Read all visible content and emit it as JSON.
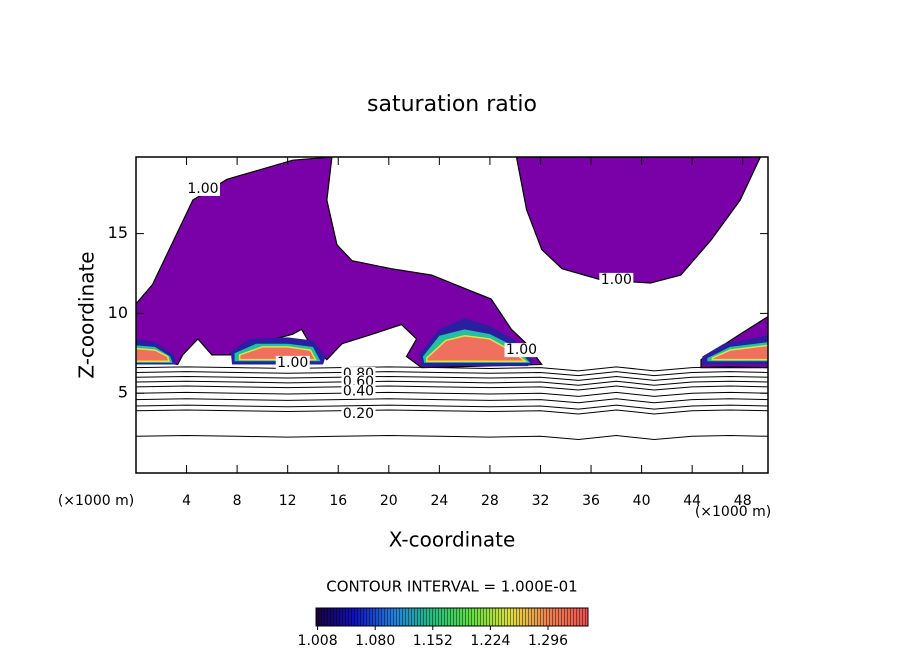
{
  "chart_data": {
    "type": "contour",
    "title": "saturation ratio",
    "xlabel": "X-coordinate",
    "ylabel": "Z-coordinate",
    "y_unit": "(×1000 m)",
    "x_unit": "(×1000 m)",
    "xlim": [
      0,
      50
    ],
    "ylim": [
      0,
      19.8
    ],
    "xticks": [
      4,
      8,
      12,
      16,
      20,
      24,
      28,
      32,
      36,
      40,
      44,
      48
    ],
    "yticks": [
      5,
      10,
      15
    ],
    "regions": [
      {
        "color": "#7a00a8",
        "edge": "#000000",
        "x": [
          0,
          1.3,
          4.5,
          7.2,
          12.4,
          15.5,
          15.1,
          15.9,
          17.1,
          20.2,
          23.4,
          26.2,
          28.1,
          29.7,
          30.9,
          32.1,
          22.6,
          21.4,
          22.2,
          21.0,
          18.7,
          16.3,
          15.1,
          13.9,
          13.1,
          12.4,
          9.6,
          7.6,
          6.0,
          4.9,
          3.7,
          3.3,
          1.7,
          0
        ],
        "y": [
          10.6,
          11.8,
          17.1,
          18.4,
          19.6,
          19.8,
          17.1,
          14.3,
          13.3,
          12.8,
          12.4,
          11.5,
          10.9,
          9.0,
          8.1,
          6.8,
          6.6,
          7.3,
          8.4,
          9.3,
          8.7,
          8.1,
          7.1,
          7.9,
          9.0,
          8.7,
          8.1,
          7.4,
          7.4,
          8.4,
          7.4,
          6.8,
          7.0,
          7.4
        ]
      },
      {
        "color": "#7a00a8",
        "edge": "#000000",
        "x": [
          30.1,
          49.4,
          47.8,
          45.5,
          43.1,
          40.7,
          36.8,
          33.7,
          32.1,
          30.9
        ],
        "y": [
          19.8,
          19.8,
          17.1,
          14.6,
          12.4,
          11.9,
          12.1,
          12.8,
          14.0,
          16.5
        ]
      },
      {
        "color": "#7a00a8",
        "edge": "#000000",
        "x": [
          44.7,
          47.8,
          50,
          50,
          44.7
        ],
        "y": [
          7.1,
          8.7,
          9.8,
          6.6,
          6.6
        ]
      },
      {
        "color": "#2a1fa0",
        "edge": "none",
        "x": [
          0,
          1.5,
          3.0,
          3.2,
          0
        ],
        "y": [
          8.4,
          8.2,
          7.4,
          6.8,
          6.8
        ]
      },
      {
        "color": "#2a1fa0",
        "edge": "none",
        "x": [
          7.5,
          9,
          12,
          14,
          15,
          14.8,
          7.6
        ],
        "y": [
          7.6,
          8.4,
          8.5,
          8.3,
          7.3,
          6.8,
          6.8
        ]
      },
      {
        "color": "#2a1fa0",
        "edge": "none",
        "x": [
          22.4,
          24,
          26,
          28,
          30,
          31.5,
          31,
          22.6
        ],
        "y": [
          7.4,
          9.0,
          9.7,
          9.2,
          8.3,
          7.0,
          6.7,
          6.7
        ]
      },
      {
        "color": "#2a1fa0",
        "edge": "none",
        "x": [
          44.8,
          46.5,
          48.5,
          50,
          50,
          44.8
        ],
        "y": [
          7.3,
          8.1,
          8.4,
          8.6,
          6.8,
          6.8
        ]
      },
      {
        "color": "#20c0a0",
        "edge": "none",
        "x": [
          0,
          1.5,
          2.7,
          2.9,
          0
        ],
        "y": [
          8.0,
          7.9,
          7.3,
          6.9,
          6.9
        ]
      },
      {
        "color": "#20c0a0",
        "edge": "none",
        "x": [
          7.8,
          9.5,
          12,
          14,
          14.6,
          7.8
        ],
        "y": [
          7.5,
          8.1,
          8.1,
          7.9,
          7.0,
          7.0
        ]
      },
      {
        "color": "#20c0a0",
        "edge": "none",
        "x": [
          22.7,
          24,
          26,
          28,
          30,
          31.2,
          22.8
        ],
        "y": [
          7.3,
          8.6,
          9.0,
          8.7,
          7.9,
          6.9,
          6.9
        ]
      },
      {
        "color": "#20c0a0",
        "edge": "none",
        "x": [
          45.2,
          47,
          49,
          50,
          50,
          45.2
        ],
        "y": [
          7.2,
          7.9,
          8.1,
          8.2,
          7.0,
          7.0
        ]
      },
      {
        "color": "#f07060",
        "edge": "#e8e040",
        "x": [
          0,
          1.5,
          2.5,
          2.6,
          0
        ],
        "y": [
          7.8,
          7.7,
          7.3,
          7.0,
          7.0
        ]
      },
      {
        "color": "#f07060",
        "edge": "#e8e040",
        "x": [
          8.2,
          10,
          12,
          13.8,
          14.2,
          8.2
        ],
        "y": [
          7.4,
          7.9,
          7.9,
          7.7,
          7.1,
          7.1
        ]
      },
      {
        "color": "#f07060",
        "edge": "#e8e040",
        "x": [
          23,
          24.5,
          26,
          28,
          29.8,
          30.8,
          23
        ],
        "y": [
          7.2,
          8.3,
          8.6,
          8.4,
          7.6,
          7.0,
          7.0
        ]
      },
      {
        "color": "#f07060",
        "edge": "#e8e040",
        "x": [
          45.6,
          47,
          49,
          50,
          50,
          45.6
        ],
        "y": [
          7.2,
          7.7,
          7.9,
          8.0,
          7.1,
          7.1
        ]
      }
    ],
    "contour_x": [
      0,
      4,
      8,
      12,
      16,
      20,
      24,
      28,
      32,
      35,
      38,
      41,
      44,
      47,
      50
    ],
    "contour_lines": [
      [
        6.6,
        6.65,
        6.6,
        6.55,
        6.6,
        6.65,
        6.6,
        6.55,
        6.6,
        6.4,
        6.65,
        6.4,
        6.6,
        6.65,
        6.6
      ],
      [
        6.3,
        6.35,
        6.3,
        6.25,
        6.3,
        6.35,
        6.3,
        6.25,
        6.3,
        6.1,
        6.35,
        6.1,
        6.3,
        6.35,
        6.3
      ],
      [
        6.0,
        6.05,
        6.0,
        5.95,
        6.0,
        6.05,
        6.0,
        5.95,
        6.0,
        5.8,
        6.05,
        5.8,
        6.0,
        6.05,
        6.0
      ],
      [
        5.7,
        5.75,
        5.7,
        5.65,
        5.7,
        5.75,
        5.7,
        5.65,
        5.7,
        5.5,
        5.75,
        5.5,
        5.7,
        5.75,
        5.7
      ],
      [
        5.4,
        5.45,
        5.4,
        5.35,
        5.4,
        5.45,
        5.4,
        5.35,
        5.4,
        5.2,
        5.45,
        5.2,
        5.4,
        5.45,
        5.4
      ],
      [
        5.0,
        5.05,
        5.0,
        4.95,
        5.0,
        5.05,
        5.0,
        4.95,
        5.0,
        4.8,
        5.05,
        4.8,
        5.0,
        5.05,
        5.0
      ],
      [
        4.6,
        4.65,
        4.6,
        4.55,
        4.6,
        4.65,
        4.6,
        4.55,
        4.6,
        4.4,
        4.65,
        4.4,
        4.6,
        4.65,
        4.6
      ],
      [
        4.2,
        4.25,
        4.2,
        4.15,
        4.2,
        4.25,
        4.2,
        4.15,
        4.2,
        4.0,
        4.25,
        4.0,
        4.2,
        4.25,
        4.2
      ],
      [
        3.9,
        3.95,
        3.9,
        3.85,
        3.9,
        3.95,
        3.9,
        3.85,
        3.9,
        3.7,
        3.95,
        3.7,
        3.9,
        3.95,
        3.9
      ],
      [
        2.3,
        2.35,
        2.3,
        2.25,
        2.3,
        2.35,
        2.3,
        2.25,
        2.3,
        2.1,
        2.35,
        2.1,
        2.3,
        2.35,
        2.3
      ]
    ],
    "contour_labels": [
      {
        "text": "1.00",
        "x": 12.4,
        "y": 6.9
      },
      {
        "text": "1.00",
        "x": 38,
        "y": 12.1
      },
      {
        "text": "1.00",
        "x": 5.3,
        "y": 17.8
      },
      {
        "text": "1.00",
        "x": 30.5,
        "y": 7.7
      },
      {
        "text": "0.80",
        "x": 17.6,
        "y": 6.2
      },
      {
        "text": "0.60",
        "x": 17.6,
        "y": 5.7
      },
      {
        "text": "0.40",
        "x": 17.6,
        "y": 5.1
      },
      {
        "text": "0.20",
        "x": 17.6,
        "y": 3.7
      }
    ],
    "contour_interval": "CONTOUR INTERVAL = 1.000E-01",
    "colorbar": {
      "lim": [
        1.006,
        1.346
      ],
      "colors": [
        "#1a0040",
        "#1010c0",
        "#2080e0",
        "#20c080",
        "#60e040",
        "#e0e040",
        "#f08050",
        "#f05050"
      ],
      "ticks": [
        1.008,
        {
          "value": 1.08,
          "label": "1.080"
        },
        1.152,
        1.224,
        1.296
      ]
    }
  }
}
